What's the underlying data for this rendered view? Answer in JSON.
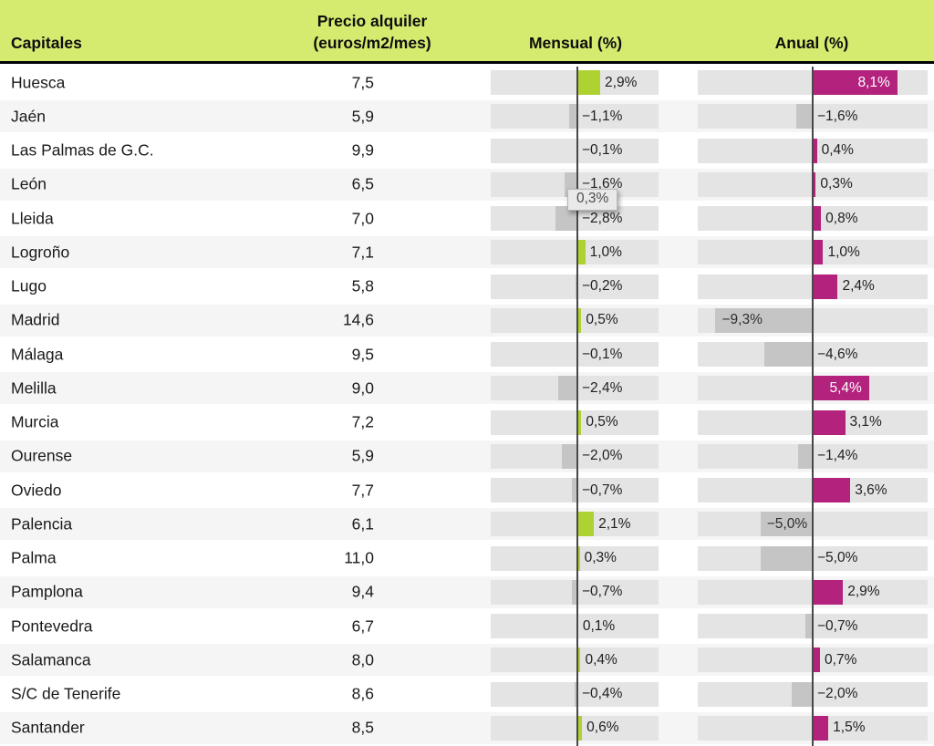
{
  "header": {
    "capitales": "Capitales",
    "precio": "Precio alquiler\n(euros/m2/mes)",
    "mensual": "Mensual (%)",
    "anual": "Anual (%)"
  },
  "tooltip": {
    "text": "0,3%"
  },
  "colors": {
    "header_bg": "#d5eb70",
    "positive_mensual": "#afd233",
    "positive_anual": "#b3237e",
    "negative": "#c5c5c5",
    "track": "#e4e4e4",
    "stripe": "#f5f5f5",
    "axis_line": "#484848",
    "inside_label_light": "#ffffff"
  },
  "chart_data": {
    "type": "table",
    "title": "",
    "columns": [
      "Capitales",
      "Precio alquiler (euros/m2/mes)",
      "Mensual (%)",
      "Anual (%)"
    ],
    "axis_range_pct": [
      -11,
      11
    ],
    "grid": false,
    "legend_position": "none",
    "rows": [
      {
        "capital": "Huesca",
        "precio": "7,5",
        "mensual": 2.9,
        "mensual_label": "2,9%",
        "anual": 8.1,
        "anual_label": "8,1%",
        "anual_label_mode": "inside-right"
      },
      {
        "capital": "Jaén",
        "precio": "5,9",
        "mensual": -1.1,
        "mensual_label": "−1,1%",
        "anual": -1.6,
        "anual_label": "−1,6%"
      },
      {
        "capital": "Las Palmas de G.C.",
        "precio": "9,9",
        "mensual": -0.1,
        "mensual_label": "−0,1%",
        "anual": 0.4,
        "anual_label": "0,4%"
      },
      {
        "capital": "León",
        "precio": "6,5",
        "mensual": -1.6,
        "mensual_label": "−1,6%",
        "anual": 0.3,
        "anual_label": "0,3%"
      },
      {
        "capital": "Lleida",
        "precio": "7,0",
        "mensual": -2.8,
        "mensual_label": "−2,8%",
        "anual": 0.8,
        "anual_label": "0,8%"
      },
      {
        "capital": "Logroño",
        "precio": "7,1",
        "mensual": 1.0,
        "mensual_label": "1,0%",
        "anual": 1.0,
        "anual_label": "1,0%"
      },
      {
        "capital": "Lugo",
        "precio": "5,8",
        "mensual": -0.2,
        "mensual_label": "−0,2%",
        "anual": 2.4,
        "anual_label": "2,4%"
      },
      {
        "capital": "Madrid",
        "precio": "14,6",
        "mensual": 0.5,
        "mensual_label": "0,5%",
        "anual": -9.3,
        "anual_label": "−9,3%",
        "anual_label_mode": "inside-left"
      },
      {
        "capital": "Málaga",
        "precio": "9,5",
        "mensual": -0.1,
        "mensual_label": "−0,1%",
        "anual": -4.6,
        "anual_label": "−4,6%"
      },
      {
        "capital": "Melilla",
        "precio": "9,0",
        "mensual": -2.4,
        "mensual_label": "−2,4%",
        "anual": 5.4,
        "anual_label": "5,4%",
        "anual_label_mode": "inside-right"
      },
      {
        "capital": "Murcia",
        "precio": "7,2",
        "mensual": 0.5,
        "mensual_label": "0,5%",
        "anual": 3.1,
        "anual_label": "3,1%"
      },
      {
        "capital": "Ourense",
        "precio": "5,9",
        "mensual": -2.0,
        "mensual_label": "−2,0%",
        "anual": -1.4,
        "anual_label": "−1,4%"
      },
      {
        "capital": "Oviedo",
        "precio": "7,7",
        "mensual": -0.7,
        "mensual_label": "−0,7%",
        "anual": 3.6,
        "anual_label": "3,6%"
      },
      {
        "capital": "Palencia",
        "precio": "6,1",
        "mensual": 2.1,
        "mensual_label": "2,1%",
        "anual": -5.0,
        "anual_label": "−5,0%",
        "anual_label_mode": "inside-left"
      },
      {
        "capital": "Palma",
        "precio": "11,0",
        "mensual": 0.3,
        "mensual_label": "0,3%",
        "anual": -5.0,
        "anual_label": "−5,0%"
      },
      {
        "capital": "Pamplona",
        "precio": "9,4",
        "mensual": -0.7,
        "mensual_label": "−0,7%",
        "anual": 2.9,
        "anual_label": "2,9%"
      },
      {
        "capital": "Pontevedra",
        "precio": "6,7",
        "mensual": 0.1,
        "mensual_label": "0,1%",
        "anual": -0.7,
        "anual_label": "−0,7%"
      },
      {
        "capital": "Salamanca",
        "precio": "8,0",
        "mensual": 0.4,
        "mensual_label": "0,4%",
        "anual": 0.7,
        "anual_label": "0,7%"
      },
      {
        "capital": "S/C de Tenerife",
        "precio": "8,6",
        "mensual": -0.4,
        "mensual_label": "−0,4%",
        "anual": -2.0,
        "anual_label": "−2,0%"
      },
      {
        "capital": "Santander",
        "precio": "8,5",
        "mensual": 0.6,
        "mensual_label": "0,6%",
        "anual": 1.5,
        "anual_label": "1,5%"
      }
    ]
  }
}
